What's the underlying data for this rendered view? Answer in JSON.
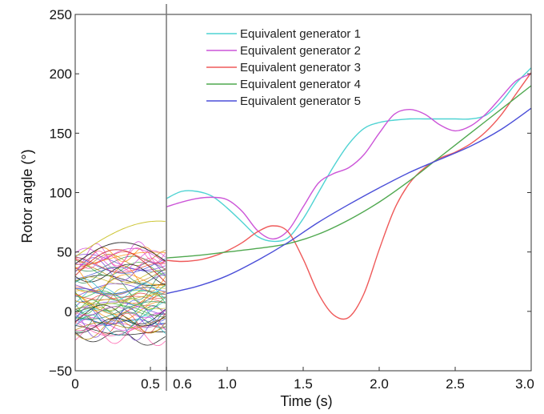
{
  "chart_data": {
    "type": "line",
    "xlabel": "Time (s)",
    "ylabel": "Rotor angle (°)",
    "xlim": [
      0,
      3.0
    ],
    "ylim": [
      -50,
      250
    ],
    "grid": false,
    "legend_position": "top-center",
    "x_ticks_left": [
      {
        "value": 0,
        "label": "0"
      },
      {
        "value": 0.5,
        "label": "0.5"
      }
    ],
    "x_ticks_main": [
      {
        "value": 0.6,
        "label": "0.6"
      },
      {
        "value": 1.0,
        "label": "1.0"
      },
      {
        "value": 1.5,
        "label": "1.5"
      },
      {
        "value": 2.0,
        "label": "2.0"
      },
      {
        "value": 2.5,
        "label": "2.5"
      },
      {
        "value": 3.0,
        "label": "3.0"
      }
    ],
    "y_ticks": [
      {
        "value": -50,
        "label": "−50"
      },
      {
        "value": 0,
        "label": "0"
      },
      {
        "value": 50,
        "label": "50"
      },
      {
        "value": 100,
        "label": "100"
      },
      {
        "value": 150,
        "label": "150"
      },
      {
        "value": 200,
        "label": "200"
      },
      {
        "value": 250,
        "label": "250"
      }
    ],
    "split_time": 0.6,
    "series": [
      {
        "name": "Equivalent generator 1",
        "color": "#4fd3d3",
        "x": [
          0.6,
          0.7,
          0.8,
          0.9,
          1.0,
          1.1,
          1.2,
          1.3,
          1.4,
          1.5,
          1.6,
          1.7,
          1.8,
          1.9,
          2.0,
          2.1,
          2.2,
          2.3,
          2.4,
          2.5,
          2.6,
          2.7,
          2.8,
          2.9,
          3.0
        ],
        "y": [
          95,
          101,
          101,
          97,
          87,
          75,
          63,
          59,
          62,
          78,
          100,
          122,
          141,
          154,
          159,
          161,
          162,
          162,
          162,
          162,
          162,
          165,
          176,
          192,
          205
        ]
      },
      {
        "name": "Equivalent generator 2",
        "color": "#cc55d8",
        "x": [
          0.6,
          0.7,
          0.8,
          0.9,
          1.0,
          1.1,
          1.2,
          1.3,
          1.4,
          1.5,
          1.6,
          1.7,
          1.8,
          1.9,
          2.0,
          2.1,
          2.2,
          2.3,
          2.4,
          2.5,
          2.6,
          2.7,
          2.8,
          2.9,
          3.0
        ],
        "y": [
          88,
          92,
          95,
          96,
          94,
          84,
          68,
          61,
          68,
          88,
          108,
          116,
          121,
          132,
          150,
          166,
          170,
          166,
          157,
          152,
          156,
          166,
          180,
          194,
          200
        ]
      },
      {
        "name": "Equivalent generator 3",
        "color": "#ef5a5a",
        "x": [
          0.6,
          0.7,
          0.8,
          0.9,
          1.0,
          1.1,
          1.2,
          1.3,
          1.4,
          1.5,
          1.6,
          1.7,
          1.8,
          1.9,
          2.0,
          2.1,
          2.2,
          2.3,
          2.4,
          2.5,
          2.6,
          2.7,
          2.8,
          2.9,
          3.0
        ],
        "y": [
          43,
          42,
          43,
          46,
          51,
          58,
          67,
          72,
          67,
          44,
          15,
          -3,
          -5,
          15,
          52,
          86,
          108,
          121,
          129,
          134,
          141,
          151,
          165,
          183,
          201
        ]
      },
      {
        "name": "Equivalent generator 4",
        "color": "#4fa84f",
        "x": [
          0.6,
          0.8,
          1.0,
          1.2,
          1.4,
          1.6,
          1.8,
          2.0,
          2.2,
          2.4,
          2.6,
          2.8,
          3.0
        ],
        "y": [
          45,
          47,
          50,
          53,
          57,
          65,
          77,
          92,
          110,
          130,
          150,
          170,
          190
        ]
      },
      {
        "name": "Equivalent generator 5",
        "color": "#4a4ed8",
        "x": [
          0.6,
          0.8,
          1.0,
          1.2,
          1.4,
          1.6,
          1.8,
          2.0,
          2.2,
          2.4,
          2.6,
          2.8,
          3.0
        ],
        "y": [
          15,
          21,
          30,
          43,
          58,
          75,
          90,
          104,
          117,
          128,
          139,
          153,
          171
        ]
      }
    ]
  }
}
